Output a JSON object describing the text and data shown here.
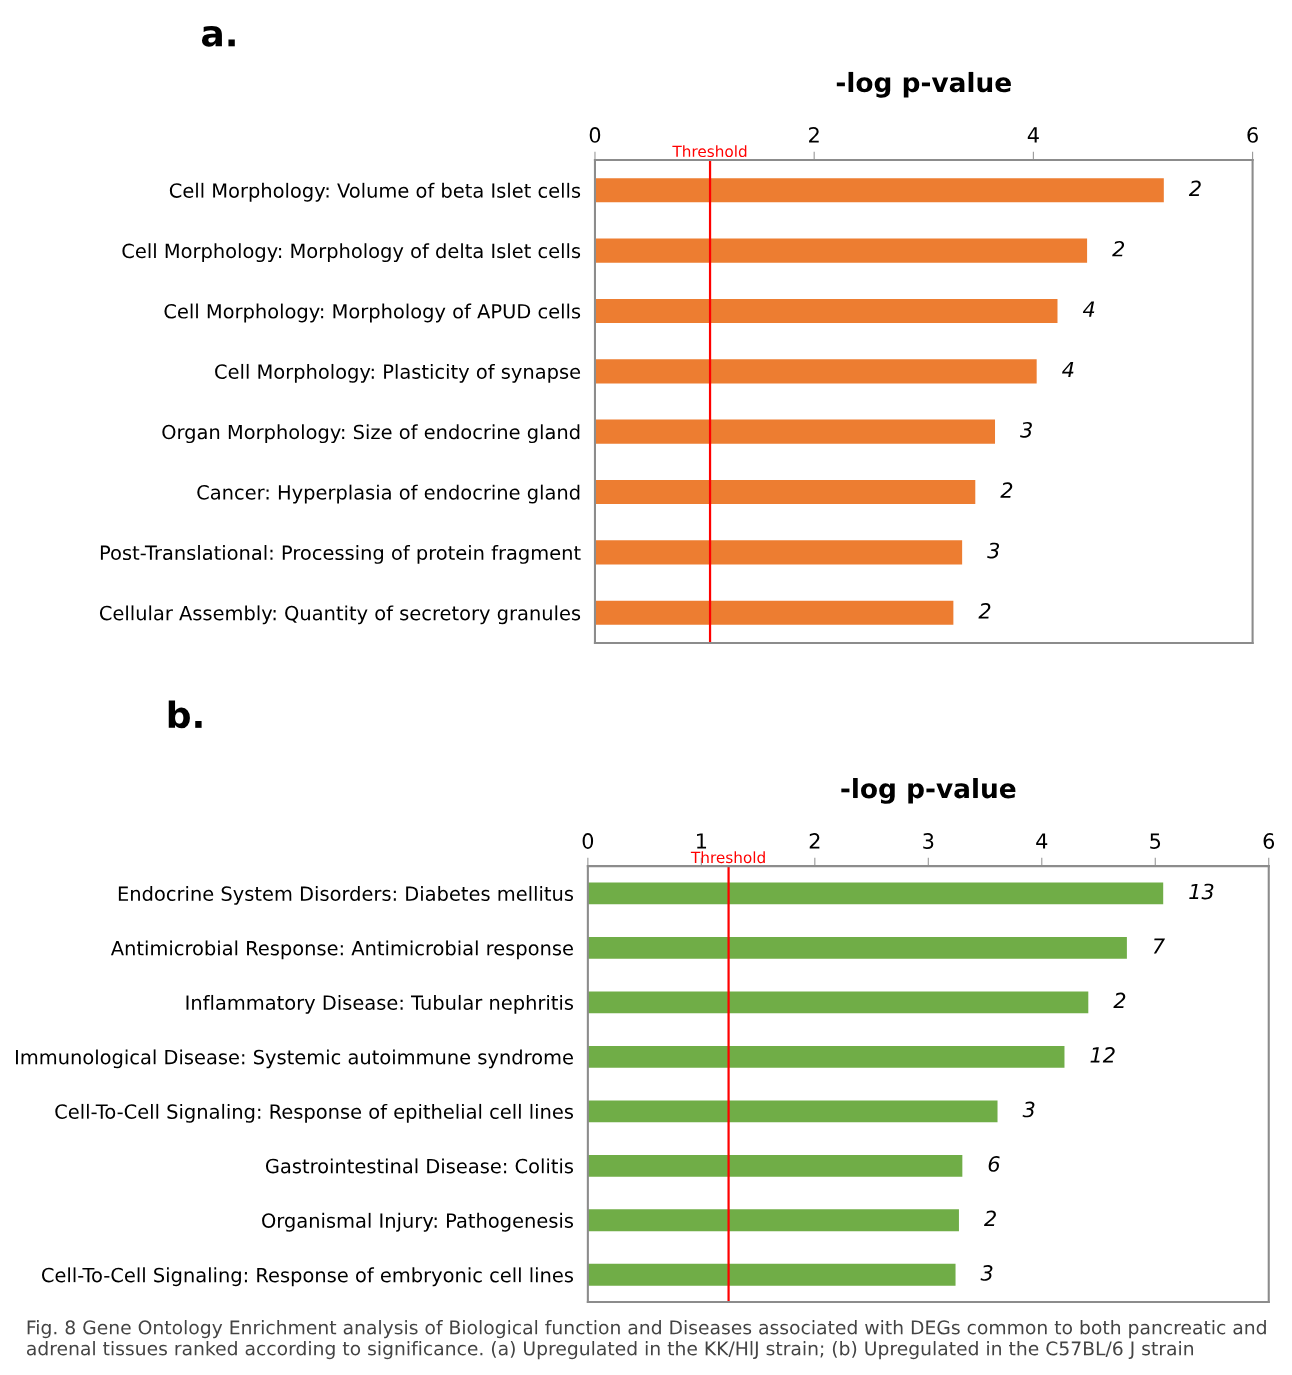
{
  "chart_data": [
    {
      "type": "bar",
      "orientation": "horizontal",
      "title": "a.",
      "xlabel": "-log p-value",
      "categories": [
        "Cell Morphology: Volume of beta Islet cells",
        "Cell Morphology: Morphology of delta Islet cells",
        "Cell Morphology: Morphology of APUD cells",
        "Cell Morphology: Plasticity of synapse",
        "Organ Morphology: Size of endocrine gland",
        "Cancer: Hyperplasia of endocrine gland",
        "Post-Translational: Processing of protein fragment",
        "Cellular Assembly: Quantity of secretory granules"
      ],
      "values": [
        5.19,
        4.49,
        4.22,
        4.03,
        3.65,
        3.47,
        3.35,
        3.27
      ],
      "color": "#ed7d31",
      "xlim": [
        0,
        6
      ],
      "xticks": [
        0,
        2,
        4,
        6
      ],
      "grid": false,
      "legend": false,
      "ref_lines": [
        {
          "axis": "x",
          "value": 1.05,
          "label": "Threshold",
          "color": "#ff0000"
        }
      ],
      "annotations": [
        {
          "text": "2",
          "x": 5.19,
          "y": "Cell Morphology: Volume of beta Islet cells"
        },
        {
          "text": "2",
          "x": 4.49,
          "y": "Cell Morphology: Morphology of delta Islet cells"
        },
        {
          "text": "4",
          "x": 4.22,
          "y": "Cell Morphology: Morphology of APUD cells"
        },
        {
          "text": "4",
          "x": 4.03,
          "y": "Cell Morphology: Plasticity of synapse"
        },
        {
          "text": "3",
          "x": 3.65,
          "y": "Organ Morphology: Size of endocrine gland"
        },
        {
          "text": "2",
          "x": 3.47,
          "y": "Cancer: Hyperplasia of endocrine gland"
        },
        {
          "text": "3",
          "x": 3.35,
          "y": "Post-Translational: Processing of protein fragment"
        },
        {
          "text": "2",
          "x": 3.27,
          "y": "Cellular Assembly: Quantity of secretory granules"
        }
      ]
    },
    {
      "type": "bar",
      "orientation": "horizontal",
      "title": "b.",
      "xlabel": "-log p-value",
      "categories": [
        "Endocrine System Disorders: Diabetes mellitus",
        "Antimicrobial Response: Antimicrobial response",
        "Inflammatory Disease: Tubular nephritis",
        "Immunological Disease: Systemic autoimmune syndrome",
        "Cell-To-Cell Signaling: Response of epithelial cell lines",
        "Gastrointestinal Disease: Colitis",
        "Organismal Injury: Pathogenesis",
        "Cell-To-Cell Signaling: Response of embryonic cell lines"
      ],
      "values": [
        5.07,
        4.75,
        4.41,
        4.2,
        3.61,
        3.3,
        3.27,
        3.24
      ],
      "color": "#70ad47",
      "xlim": [
        0,
        6
      ],
      "xticks": [
        0,
        1,
        2,
        3,
        4,
        5,
        6
      ],
      "grid": false,
      "legend": false,
      "ref_lines": [
        {
          "axis": "x",
          "value": 1.24,
          "label": "Threshold",
          "color": "#ff0000"
        }
      ],
      "annotations": [
        {
          "text": "13",
          "x": 5.07,
          "y": "Endocrine System Disorders: Diabetes mellitus"
        },
        {
          "text": "7",
          "x": 4.75,
          "y": "Antimicrobial Response: Antimicrobial response"
        },
        {
          "text": "2",
          "x": 4.41,
          "y": "Inflammatory Disease: Tubular nephritis"
        },
        {
          "text": "12",
          "x": 4.2,
          "y": "Immunological Disease: Systemic autoimmune syndrome"
        },
        {
          "text": "3",
          "x": 3.61,
          "y": "Cell-To-Cell Signaling: Response of epithelial cell lines"
        },
        {
          "text": "6",
          "x": 3.3,
          "y": "Gastrointestinal Disease: Colitis"
        },
        {
          "text": "2",
          "x": 3.27,
          "y": "Organismal Injury: Pathogenesis"
        },
        {
          "text": "3",
          "x": 3.24,
          "y": "Cell-To-Cell Signaling: Response of embryonic cell lines"
        },
        "Fig. 8 Gene Ontology Enrichment analysis of Biological function and Diseases associated with DEGs common to both pancreatic and adrenal tissues ranked according to significance. (a) Upregulated in the KK/HlJ strain; (b) Upregulated in the C57BL/6 J strain"
      ]
    }
  ]
}
